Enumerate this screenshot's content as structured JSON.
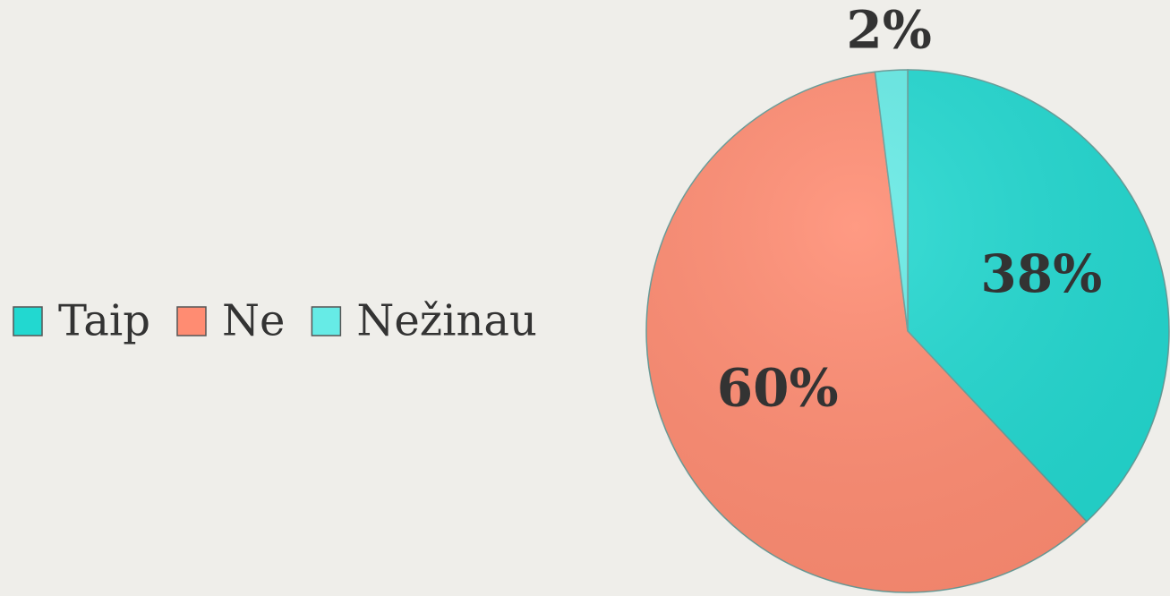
{
  "chart_data": {
    "type": "pie",
    "categories": [
      "Taip",
      "Ne",
      "Nežinau"
    ],
    "values": [
      38,
      60,
      2
    ],
    "value_labels": [
      "38%",
      "60%",
      "2%"
    ],
    "colors": [
      "#22d8d0",
      "#ff8c72",
      "#66ebe6"
    ]
  }
}
